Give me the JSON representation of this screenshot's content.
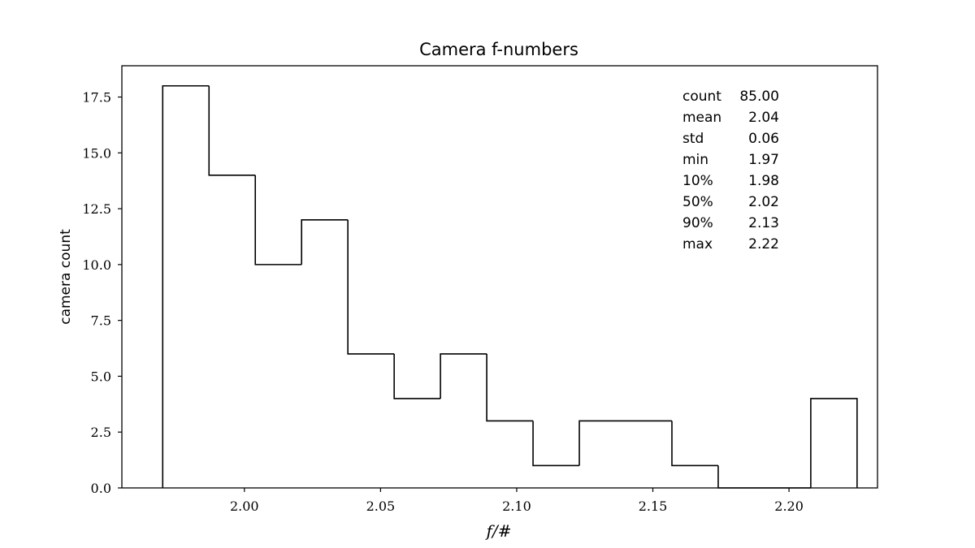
{
  "chart_data": {
    "type": "histogram",
    "title": "Camera f-numbers",
    "xlabel": "f/#",
    "ylabel": "camera count",
    "xlim": [
      1.955,
      2.2325
    ],
    "ylim": [
      0,
      18.9
    ],
    "bin_edges": [
      1.97,
      1.987,
      2.004,
      2.021,
      2.038,
      2.055,
      2.072,
      2.089,
      2.106,
      2.123,
      2.14,
      2.157,
      2.174,
      2.191,
      2.208,
      2.225
    ],
    "counts": [
      18,
      14,
      10,
      12,
      6,
      4,
      6,
      3,
      1,
      3,
      3,
      1,
      0,
      0,
      4
    ],
    "x_ticks": [
      2.0,
      2.05,
      2.1,
      2.15,
      2.2
    ],
    "x_tick_labels": [
      "2.00",
      "2.05",
      "2.10",
      "2.15",
      "2.20"
    ],
    "y_ticks": [
      0,
      2.5,
      5,
      7.5,
      10,
      12.5,
      15,
      17.5
    ],
    "y_tick_labels": [
      "0.0",
      "2.5",
      "5.0",
      "7.5",
      "10.0",
      "12.5",
      "15.0",
      "17.5"
    ],
    "grid": false,
    "stats_placement": "top-right",
    "stats": [
      {
        "label": "count",
        "value": "85.00"
      },
      {
        "label": "mean",
        "value": "2.04"
      },
      {
        "label": "std",
        "value": "0.06"
      },
      {
        "label": "min",
        "value": "1.97"
      },
      {
        "label": "10%",
        "value": "1.98"
      },
      {
        "label": "50%",
        "value": "2.02"
      },
      {
        "label": "90%",
        "value": "2.13"
      },
      {
        "label": "max",
        "value": "2.22"
      }
    ],
    "colors": {
      "line": "#000000",
      "background": "#ffffff"
    }
  }
}
